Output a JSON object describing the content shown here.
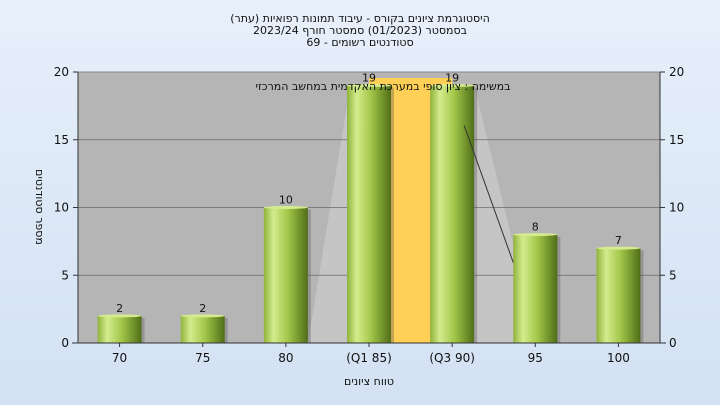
{
  "chart_data": {
    "type": "bar",
    "title_lines": [
      "(היסטוגרמת ציונים בקורס - עיבוד תמונות רפואיות (עתר",
      "בסמסטר  (01/2023)  סמסטר חורף  2023/24",
      "סטודנטים רשומים - 69"
    ],
    "annotation": "במשימה : ציון סופי במערכת האקדמית במחשב המרכזי",
    "xlabel": "טווח ציונים",
    "ylabel": "מספר סטודנטים",
    "categories": [
      "70",
      "75",
      "80",
      "(Q1 85)",
      "(Q3 90)",
      "95",
      "100"
    ],
    "values": [
      2,
      2,
      10,
      19,
      19,
      8,
      7
    ],
    "data_labels": [
      "2",
      "2",
      "10",
      "19",
      "19",
      "8",
      "7"
    ],
    "yticks": [
      0,
      5,
      10,
      15,
      20
    ],
    "ylim": [
      0,
      20
    ],
    "grid": true,
    "colors": {
      "bar_light": "#d4ec8e",
      "bar_mid": "#9cc043",
      "bar_dark": "#4f6e18",
      "iqr_band": "#ffd055",
      "plot_bg": "#b5b5b5",
      "plot_shade": "#c9c9c9"
    }
  }
}
